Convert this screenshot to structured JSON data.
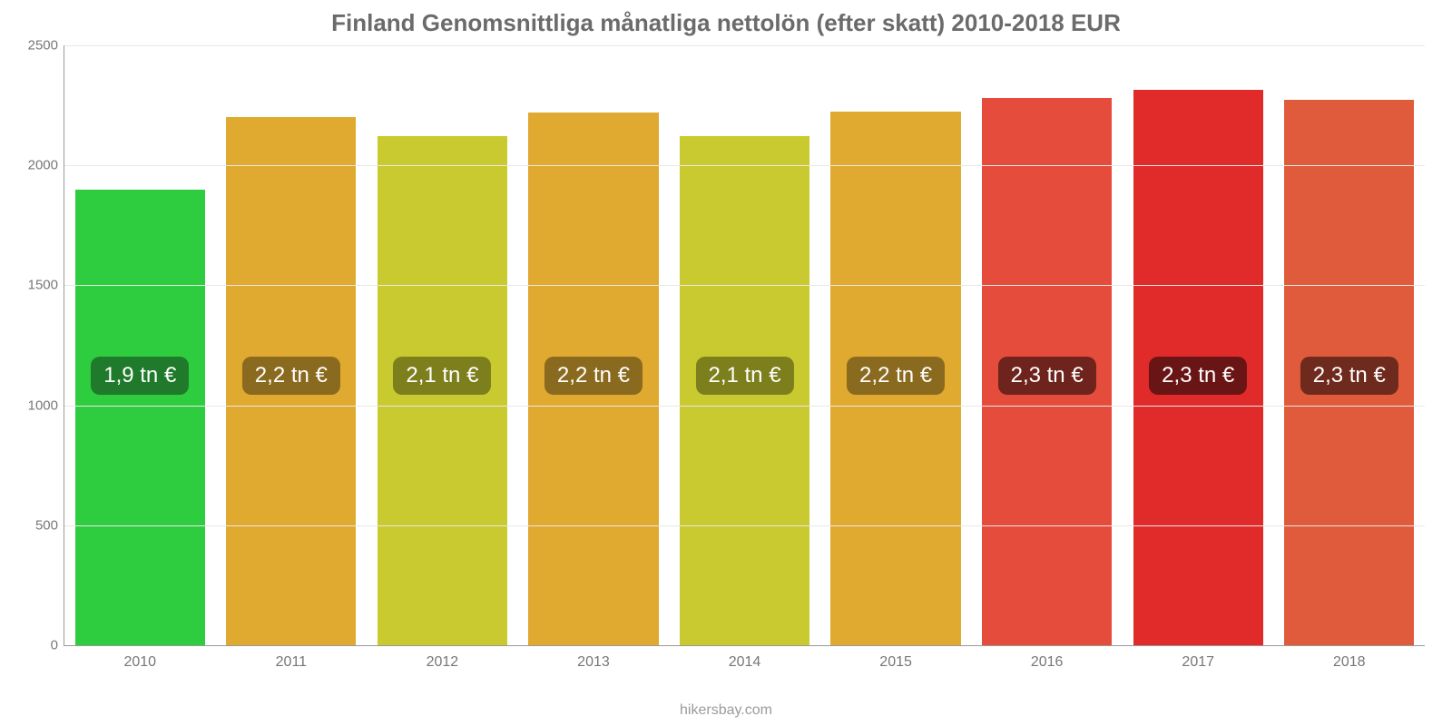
{
  "chart": {
    "type": "bar",
    "title": "Finland Genomsnittliga månatliga nettolön (efter skatt) 2010-2018 EUR",
    "title_fontsize": 26,
    "title_color": "#6b6b6b",
    "source": "hikersbay.com",
    "background_color": "#ffffff",
    "grid_color": "#e8e8e8",
    "axis_color": "#999999",
    "tick_color": "#777777",
    "tick_fontsize": 15,
    "xtick_fontsize": 16,
    "ylim": [
      0,
      2500
    ],
    "ytick_step": 500,
    "yticks": [
      0,
      500,
      1000,
      1500,
      2000,
      2500
    ],
    "bar_width_pct": 86,
    "bar_label_fontsize": 24,
    "bar_label_radius": 10,
    "bar_label_y_value": 1120,
    "categories": [
      "2010",
      "2011",
      "2012",
      "2013",
      "2014",
      "2015",
      "2016",
      "2017",
      "2018"
    ],
    "values": [
      1900,
      2200,
      2120,
      2220,
      2120,
      2225,
      2280,
      2315,
      2275
    ],
    "bar_labels": [
      "1,9 tn €",
      "2,2 tn €",
      "2,1 tn €",
      "2,2 tn €",
      "2,1 tn €",
      "2,2 tn €",
      "2,3 tn €",
      "2,3 tn €",
      "2,3 tn €"
    ],
    "bar_colors": [
      "#2ecc3f",
      "#e0a92f",
      "#c8ca2f",
      "#e0a92f",
      "#c8ca2f",
      "#e0a92f",
      "#e64c3c",
      "#e12a2a",
      "#e05a3c"
    ],
    "bar_label_bg": [
      "#1f7a2b",
      "#8a6a1e",
      "#7d7f1d",
      "#8a6a1e",
      "#7d7f1d",
      "#8a6a1e",
      "#6e241c",
      "#6a1515",
      "#6e2a1c"
    ],
    "label_text_color": "#ffffff"
  }
}
